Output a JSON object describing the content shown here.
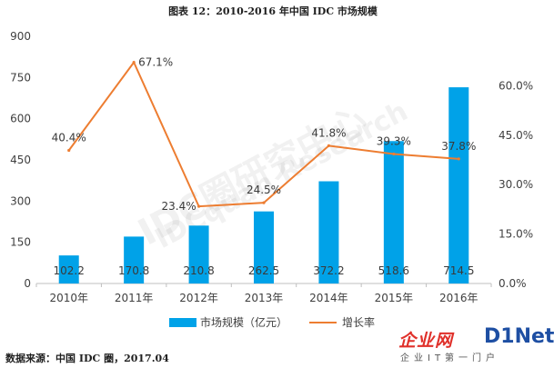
{
  "title": "图表 12：2010-2016 年中国 IDC 市场规模",
  "source": "数据来源：中国 IDC 圈，2017.04",
  "watermark": {
    "line1": "IDC圈研究中心",
    "line2": "IDCquan Research"
  },
  "logo": {
    "cn": "企业网",
    "en": "D1Net",
    "sub": "企业IT第一门户"
  },
  "colors": {
    "bar": "#00a2e8",
    "line": "#ed7d31",
    "axis": "#bfbfbf",
    "text": "#404040"
  },
  "chart_data": {
    "type": "bar",
    "title": "图表 12：2010-2016 年中国 IDC 市场规模",
    "categories": [
      "2010年",
      "2011年",
      "2012年",
      "2013年",
      "2014年",
      "2015年",
      "2016年"
    ],
    "series": [
      {
        "name": "市场规模（亿元）",
        "type": "bar",
        "axis": "left",
        "values": [
          102.2,
          170.8,
          210.8,
          262.5,
          372.2,
          518.6,
          714.5
        ],
        "labels": [
          "102.2",
          "170.8",
          "210.8",
          "262.5",
          "372.2",
          "518.6",
          "714.5"
        ]
      },
      {
        "name": "增长率",
        "type": "line",
        "axis": "right",
        "values": [
          40.4,
          67.1,
          23.4,
          24.5,
          41.8,
          39.3,
          37.8
        ],
        "labels": [
          "40.4%",
          "67.1%",
          "23.4%",
          "24.5%",
          "41.8%",
          "39.3%",
          "37.8%"
        ]
      }
    ],
    "left_axis": {
      "ylim": [
        0,
        900
      ],
      "ticks": [
        0,
        150,
        300,
        450,
        600,
        750,
        900
      ],
      "tick_labels": [
        "0",
        "150",
        "300",
        "450",
        "600",
        "750",
        "900"
      ]
    },
    "right_axis": {
      "ylim": [
        0,
        75
      ],
      "ticks": [
        0,
        15,
        30,
        45,
        60
      ],
      "tick_labels": [
        "0.0%",
        "15.0%",
        "30.0%",
        "45.0%",
        "60.0%"
      ]
    },
    "legend": {
      "position": "bottom",
      "entries": [
        "市场规模（亿元）",
        "增长率"
      ]
    },
    "grid": false
  }
}
